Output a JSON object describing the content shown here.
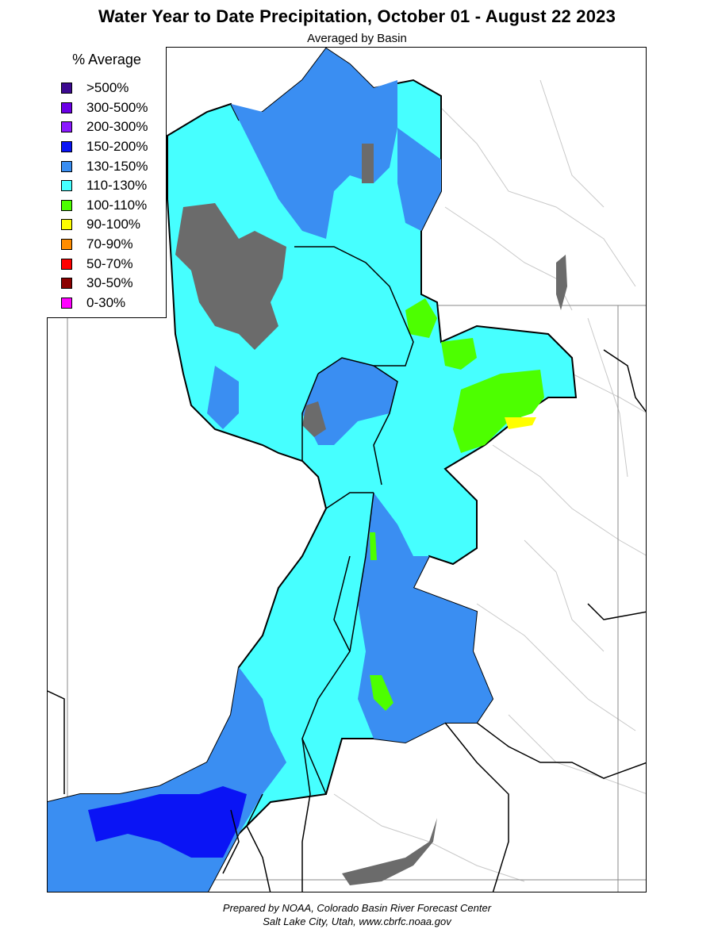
{
  "title": "Water Year to Date Precipitation, October 01  - August 22 2023",
  "subtitle": "Averaged by Basin",
  "legend": {
    "title": "% Average",
    "items": [
      {
        "label": ">500%",
        "color": "#3d0a91"
      },
      {
        "label": "300-500%",
        "color": "#6b00e6"
      },
      {
        "label": "200-300%",
        "color": "#8b1aff"
      },
      {
        "label": "150-200%",
        "color": "#0a14f5"
      },
      {
        "label": "130-150%",
        "color": "#3a8ef2"
      },
      {
        "label": "110-130%",
        "color": "#46ffff"
      },
      {
        "label": "100-110%",
        "color": "#4dff00"
      },
      {
        "label": "90-100%",
        "color": "#ffff00"
      },
      {
        "label": "70-90%",
        "color": "#ff8c00"
      },
      {
        "label": "50-70%",
        "color": "#ff0000"
      },
      {
        "label": "30-50%",
        "color": "#8b0000"
      },
      {
        "label": "0-30%",
        "color": "#ff00ff"
      }
    ]
  },
  "map_colors": {
    "cyan": "#46ffff",
    "blue": "#3a8ef2",
    "dark_blue": "#0a14f5",
    "green": "#4dff00",
    "yellow": "#ffff00",
    "gray": "#6b6b6b"
  },
  "credits": {
    "line1": "Prepared by NOAA, Colorado Basin River Forecast Center",
    "line2": "Salt Lake City, Utah, www.cbrfc.noaa.gov"
  }
}
